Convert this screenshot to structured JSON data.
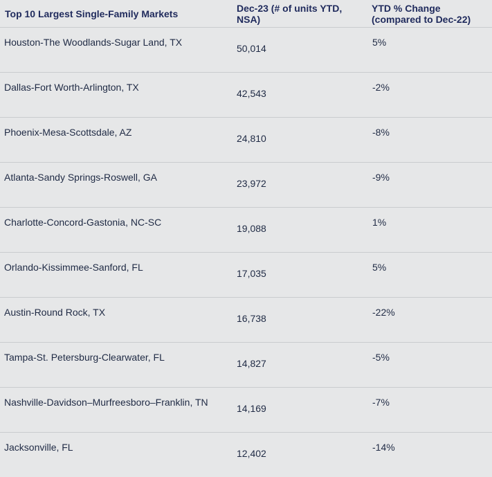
{
  "headers": {
    "market": "Top 10 Largest Single-Family Markets",
    "units": "Dec-23 (# of units YTD, NSA)",
    "change": "YTD % Change (compared to Dec-22)"
  },
  "rows": [
    {
      "market": "Houston-The Woodlands-Sugar Land, TX",
      "units": "50,014",
      "change": "5%"
    },
    {
      "market": "Dallas-Fort Worth-Arlington, TX",
      "units": "42,543",
      "change": "-2%"
    },
    {
      "market": "Phoenix-Mesa-Scottsdale, AZ",
      "units": "24,810",
      "change": "-8%"
    },
    {
      "market": "Atlanta-Sandy Springs-Roswell, GA",
      "units": "23,972",
      "change": "-9%"
    },
    {
      "market": "Charlotte-Concord-Gastonia, NC-SC",
      "units": "19,088",
      "change": "1%"
    },
    {
      "market": "Orlando-Kissimmee-Sanford, FL",
      "units": "17,035",
      "change": "5%"
    },
    {
      "market": "Austin-Round Rock, TX",
      "units": "16,738",
      "change": "-22%"
    },
    {
      "market": "Tampa-St. Petersburg-Clearwater, FL",
      "units": "14,827",
      "change": "-5%"
    },
    {
      "market": "Nashville-Davidson–Murfreesboro–Franklin, TN",
      "units": "14,169",
      "change": "-7%"
    },
    {
      "market": "Jacksonville, FL",
      "units": "12,402",
      "change": "-14%"
    }
  ]
}
